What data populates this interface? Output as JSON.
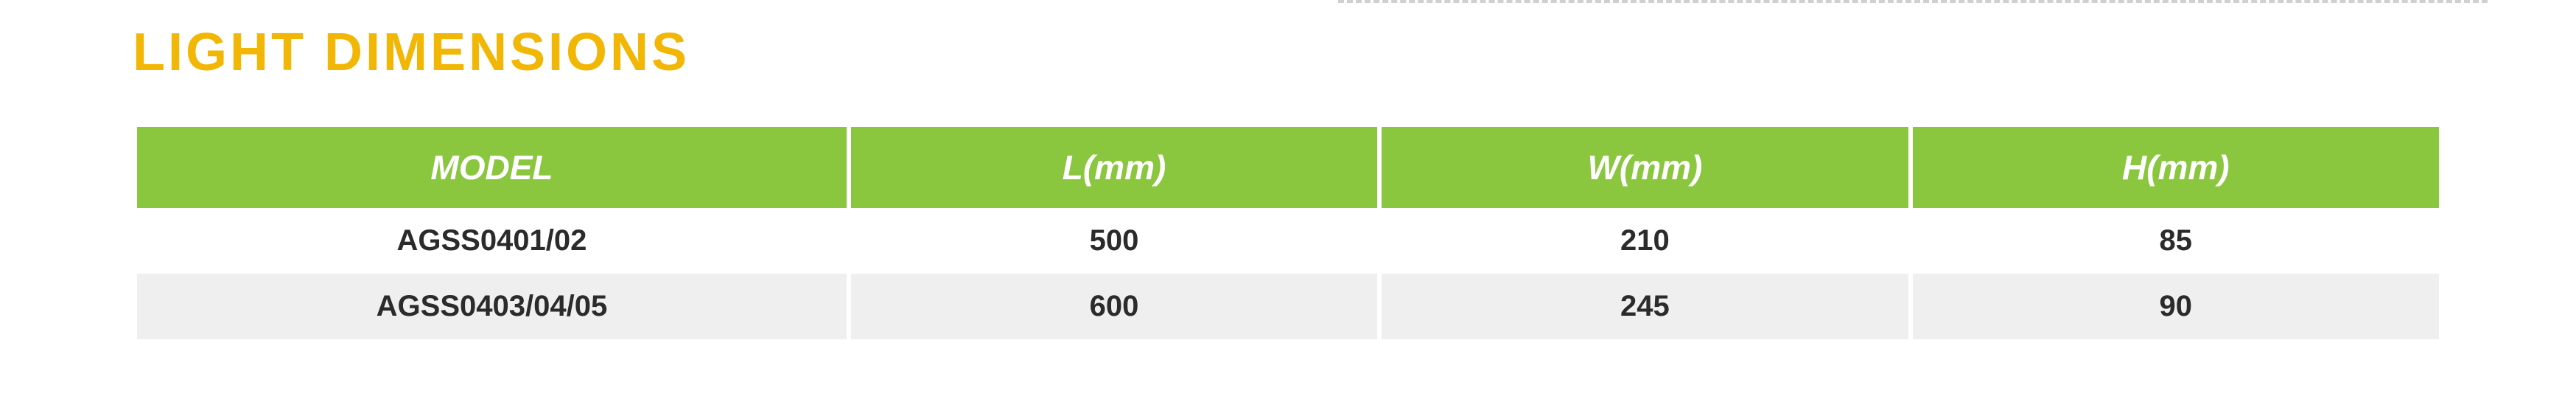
{
  "section": {
    "title": "LIGHT DIMENSIONS",
    "title_color": "#f2b705",
    "title_fontsize": 72
  },
  "table": {
    "header_bg": "#8bc63f",
    "header_text_color": "#ffffff",
    "header_fontsize": 46,
    "row_odd_bg": "#ffffff",
    "row_even_bg": "#efefef",
    "cell_text_color": "#2b2b2b",
    "cell_fontsize": 40,
    "column_widths_pct": [
      31,
      23,
      23,
      23
    ],
    "columns": [
      "MODEL",
      "L(mm)",
      "W(mm)",
      "H(mm)"
    ],
    "rows": [
      [
        "AGSS0401/02",
        "500",
        "210",
        "85"
      ],
      [
        "AGSS0403/04/05",
        "600",
        "245",
        "90"
      ]
    ]
  },
  "decor": {
    "dashed_line_color": "#d0d0d0"
  }
}
